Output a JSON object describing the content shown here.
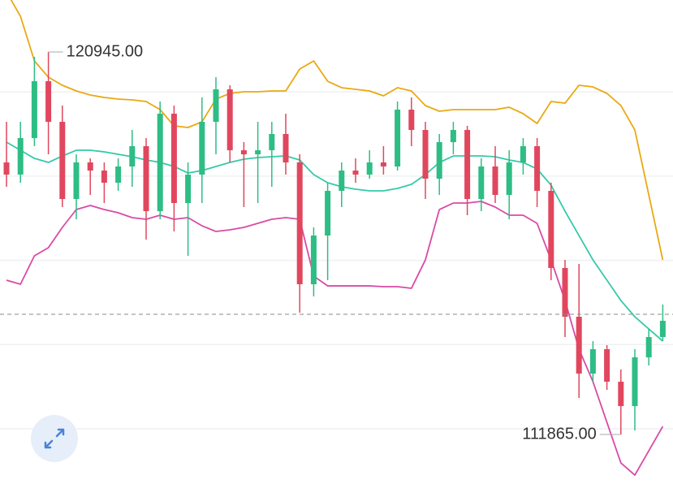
{
  "chart_data": {
    "type": "candlestick",
    "ylim": [
      110690,
      122180
    ],
    "grid_values": [
      112000,
      114000,
      116000,
      118000,
      120000
    ],
    "up_color": "#2dbd85",
    "down_color": "#e0475e",
    "open": [
      118324,
      118035,
      118902,
      120252,
      119288,
      117456,
      118324,
      118131,
      117842,
      118228,
      118710,
      117167,
      119481,
      117360,
      118035,
      119288,
      120059,
      118613,
      118517,
      118613,
      118999,
      118324,
      115432,
      116589,
      117649,
      118131,
      118035,
      118324,
      118228,
      119577,
      119095,
      117938,
      118806,
      119095,
      117456,
      118228,
      117553,
      118324,
      118710,
      117649,
      115818,
      114661,
      113311,
      113890,
      113118,
      112540,
      113697,
      114179
    ],
    "close": [
      118035,
      118902,
      120252,
      119288,
      117456,
      118324,
      118131,
      117842,
      118228,
      118710,
      117167,
      119481,
      117360,
      118035,
      119288,
      120059,
      118613,
      118517,
      118613,
      118999,
      118324,
      115432,
      116589,
      117649,
      118131,
      118035,
      118324,
      118228,
      119577,
      119095,
      117938,
      118806,
      119095,
      117456,
      118228,
      117553,
      118324,
      118710,
      117649,
      115818,
      114661,
      113311,
      113890,
      113118,
      112540,
      113697,
      114179,
      114564
    ],
    "high": [
      119288,
      119288,
      120830,
      120945,
      119674,
      118517,
      118420,
      118324,
      118420,
      119095,
      118902,
      119770,
      119674,
      118324,
      119866,
      120348,
      120156,
      118806,
      119288,
      119288,
      119481,
      118517,
      116782,
      117842,
      118324,
      118420,
      118613,
      118710,
      119770,
      119866,
      119288,
      118999,
      119288,
      119192,
      118420,
      118710,
      118613,
      118902,
      118902,
      117842,
      116010,
      115914,
      114082,
      113986,
      113408,
      113890,
      114372,
      114950
    ],
    "low": [
      117746,
      117842,
      118710,
      118517,
      117264,
      116974,
      117553,
      117360,
      117649,
      117746,
      116492,
      116974,
      116685,
      116107,
      117360,
      118517,
      118324,
      117264,
      117360,
      117746,
      118035,
      114757,
      115143,
      115528,
      117264,
      117842,
      117938,
      118035,
      118131,
      118710,
      117456,
      117553,
      118517,
      117071,
      117167,
      117360,
      116974,
      118035,
      117264,
      115528,
      114179,
      112733,
      113118,
      112926,
      111865,
      111962,
      113504,
      114082
    ],
    "overlays": [
      {
        "color": "#e9a912",
        "values": [
          122373,
          121794,
          120734,
          120348,
          120156,
          120021,
          119924,
          119866,
          119828,
          119809,
          119770,
          119577,
          119192,
          119153,
          119288,
          119828,
          119963,
          120001,
          120001,
          120021,
          120021,
          120541,
          120734,
          120252,
          120098,
          120059,
          120021,
          119905,
          120098,
          120021,
          119674,
          119539,
          119577,
          119577,
          119577,
          119577,
          119635,
          119481,
          119249,
          119770,
          119731,
          120156,
          120117,
          119963,
          119674,
          119095,
          117553,
          116010
        ]
      },
      {
        "color": "#36c9a8",
        "values": [
          118806,
          118613,
          118420,
          118324,
          118478,
          118613,
          118613,
          118575,
          118517,
          118459,
          118382,
          118324,
          118228,
          118073,
          118131,
          118228,
          118324,
          118401,
          118440,
          118459,
          118478,
          118382,
          118035,
          117842,
          117746,
          117688,
          117649,
          117649,
          117707,
          117803,
          118035,
          118324,
          118478,
          118478,
          118478,
          118459,
          118382,
          118324,
          118170,
          117784,
          117167,
          116589,
          116010,
          115528,
          115046,
          114661,
          114372,
          114082
        ]
      },
      {
        "color": "#d94aa6",
        "values": [
          115528,
          115432,
          116107,
          116300,
          116782,
          117206,
          117302,
          117206,
          117129,
          117013,
          116974,
          117071,
          116974,
          117013,
          116820,
          116685,
          116724,
          116782,
          116878,
          116974,
          117013,
          116974,
          115625,
          115393,
          115393,
          115393,
          115393,
          115374,
          115374,
          115336,
          116010,
          117206,
          117360,
          117360,
          117399,
          117264,
          117071,
          117071,
          116878,
          116010,
          115046,
          113890,
          113118,
          112154,
          111190,
          110901,
          111479,
          112058
        ]
      }
    ],
    "current_price": 114720,
    "high_marker": {
      "value": 120945,
      "label": "120945.00"
    },
    "low_marker": {
      "value": 111865,
      "label": "111865.00"
    }
  }
}
